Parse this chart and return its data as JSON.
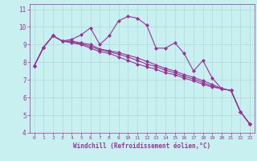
{
  "background_color": "#c8f0f0",
  "grid_color": "#b0d8d8",
  "line_color": "#993399",
  "marker": "D",
  "marker_size": 2,
  "line_width": 0.8,
  "xlabel": "Windchill (Refroidissement éolien,°C)",
  "xlabel_color": "#993399",
  "tick_color": "#993399",
  "xlim": [
    -0.5,
    23.5
  ],
  "ylim": [
    4,
    11.3
  ],
  "yticks": [
    4,
    5,
    6,
    7,
    8,
    9,
    10,
    11
  ],
  "xticks": [
    0,
    1,
    2,
    3,
    4,
    5,
    6,
    7,
    8,
    9,
    10,
    11,
    12,
    13,
    14,
    15,
    16,
    17,
    18,
    19,
    20,
    21,
    22,
    23
  ],
  "series": [
    [
      7.8,
      8.85,
      9.5,
      9.2,
      9.3,
      9.55,
      9.95,
      9.0,
      9.5,
      10.35,
      10.6,
      10.5,
      10.1,
      8.8,
      8.8,
      9.1,
      8.5,
      7.5,
      8.1,
      7.1,
      6.5,
      6.4,
      5.2,
      4.5
    ],
    [
      7.8,
      8.85,
      9.5,
      9.2,
      9.2,
      9.1,
      9.0,
      8.75,
      8.65,
      8.55,
      8.4,
      8.25,
      8.05,
      7.85,
      7.65,
      7.5,
      7.3,
      7.15,
      6.95,
      6.75,
      6.5,
      6.4,
      5.2,
      4.5
    ],
    [
      7.8,
      8.85,
      9.5,
      9.2,
      9.15,
      9.05,
      8.9,
      8.7,
      8.6,
      8.45,
      8.3,
      8.1,
      7.9,
      7.75,
      7.55,
      7.4,
      7.2,
      7.05,
      6.85,
      6.65,
      6.5,
      6.4,
      5.2,
      4.5
    ],
    [
      7.8,
      8.85,
      9.5,
      9.2,
      9.1,
      9.0,
      8.8,
      8.6,
      8.5,
      8.3,
      8.1,
      7.9,
      7.75,
      7.6,
      7.4,
      7.3,
      7.1,
      6.95,
      6.75,
      6.6,
      6.5,
      6.4,
      5.2,
      4.5
    ]
  ]
}
